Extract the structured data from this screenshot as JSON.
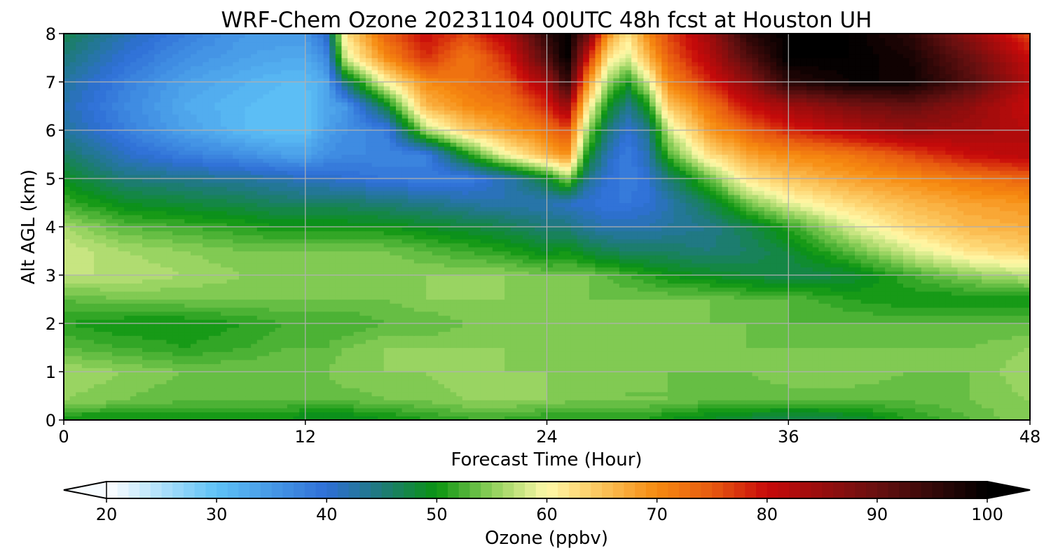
{
  "chart_data": {
    "type": "heatmap",
    "title": "WRF-Chem Ozone  20231104 00UTC 48h fcst at Houston UH",
    "xlabel": "Forecast Time (Hour)",
    "ylabel": "Alt AGL (km)",
    "xlim": [
      0,
      48
    ],
    "ylim": [
      0,
      8
    ],
    "x_ticks": [
      "0",
      "12",
      "24",
      "36",
      "48"
    ],
    "y_ticks": [
      "0",
      "1",
      "2",
      "3",
      "4",
      "5",
      "6",
      "7",
      "8"
    ],
    "grid": true,
    "colorbar": {
      "label": "Ozone  (ppbv)",
      "range": [
        20,
        100
      ],
      "extend": "both",
      "ticks": [
        "20",
        "30",
        "40",
        "50",
        "60",
        "70",
        "80",
        "90",
        "100"
      ],
      "color_stops": [
        {
          "value": 20,
          "color": "#ffffff"
        },
        {
          "value": 30,
          "color": "#5ec2f7"
        },
        {
          "value": 40,
          "color": "#2f6fd6"
        },
        {
          "value": 45,
          "color": "#1e7a7a"
        },
        {
          "value": 50,
          "color": "#0a9410"
        },
        {
          "value": 55,
          "color": "#8ed05a"
        },
        {
          "value": 60,
          "color": "#fff9a8"
        },
        {
          "value": 65,
          "color": "#fcc45a"
        },
        {
          "value": 70,
          "color": "#f68a10"
        },
        {
          "value": 75,
          "color": "#e85a10"
        },
        {
          "value": 80,
          "color": "#c80a0a"
        },
        {
          "value": 90,
          "color": "#681010"
        },
        {
          "value": 100,
          "color": "#000000"
        }
      ]
    },
    "x_hours": [
      0,
      3,
      6,
      9,
      11,
      12,
      13,
      14,
      16,
      18,
      20,
      22,
      24,
      25,
      26,
      27,
      28,
      29,
      30,
      32,
      34,
      36,
      39,
      42,
      45,
      48
    ],
    "y_km": [
      0,
      0.05,
      0.4,
      1,
      1.5,
      2,
      2.5,
      3,
      3.5,
      4,
      4.5,
      5,
      5.5,
      6,
      6.5,
      7,
      7.5,
      8
    ],
    "z_ppbv": [
      [
        51,
        52,
        51,
        51,
        51,
        52,
        51,
        51,
        51,
        52,
        52,
        52,
        51,
        51,
        51,
        51,
        51,
        51,
        51,
        50,
        49,
        48,
        49,
        52,
        53,
        55
      ],
      [
        50,
        50,
        50,
        50,
        50,
        49,
        49,
        49,
        50,
        51,
        52,
        52,
        51,
        51,
        51,
        51,
        51,
        51,
        50,
        49,
        48,
        47,
        48,
        51,
        53,
        55
      ],
      [
        55,
        54,
        53,
        53,
        53,
        53,
        53,
        53,
        54,
        54,
        55,
        55,
        55,
        54,
        54,
        54,
        54,
        54,
        54,
        53,
        53,
        53,
        53,
        53,
        54,
        55
      ],
      [
        56,
        55,
        54,
        54,
        54,
        54,
        54,
        55,
        55,
        55,
        56,
        55,
        55,
        55,
        55,
        55,
        54,
        54,
        54,
        54,
        54,
        55,
        55,
        54,
        54,
        56
      ],
      [
        53,
        52,
        51,
        52,
        53,
        53,
        53,
        54,
        55,
        55,
        55,
        55,
        54,
        54,
        54,
        54,
        54,
        54,
        54,
        54,
        54,
        54,
        54,
        54,
        54,
        55
      ],
      [
        51,
        50,
        50,
        51,
        52,
        52,
        52,
        52,
        53,
        53,
        54,
        54,
        54,
        54,
        54,
        54,
        54,
        54,
        54,
        54,
        54,
        53,
        53,
        53,
        53,
        53
      ],
      [
        53,
        54,
        54,
        54,
        54,
        54,
        54,
        54,
        54,
        55,
        55,
        55,
        55,
        54,
        54,
        54,
        54,
        54,
        54,
        54,
        53,
        53,
        51,
        50,
        50,
        50
      ],
      [
        57,
        57,
        56,
        55,
        55,
        55,
        55,
        55,
        55,
        55,
        55,
        55,
        54,
        54,
        54,
        53,
        52,
        51,
        50,
        49,
        48,
        47,
        48,
        52,
        55,
        57
      ],
      [
        58,
        56,
        55,
        54,
        54,
        54,
        54,
        54,
        54,
        53,
        52,
        51,
        49,
        50,
        48,
        47,
        46,
        46,
        46,
        45,
        46,
        48,
        53,
        58,
        62,
        64
      ],
      [
        56,
        53,
        52,
        51,
        50,
        50,
        50,
        50,
        50,
        49,
        48,
        47,
        45,
        45,
        43,
        42,
        42,
        42,
        43,
        44,
        47,
        51,
        58,
        63,
        66,
        67
      ],
      [
        52,
        49,
        48,
        47,
        46,
        46,
        46,
        46,
        45,
        44,
        43,
        42,
        42,
        41,
        40,
        39,
        39,
        40,
        42,
        47,
        54,
        59,
        63,
        66,
        68,
        69
      ],
      [
        49,
        45,
        44,
        43,
        42,
        41,
        41,
        40,
        39,
        38,
        38,
        42,
        48,
        55,
        44,
        40,
        38,
        40,
        45,
        53,
        62,
        65,
        68,
        70,
        72,
        74
      ],
      [
        46,
        41,
        38,
        36,
        34,
        34,
        36,
        37,
        37,
        38,
        50,
        60,
        66,
        70,
        50,
        42,
        38,
        42,
        52,
        62,
        68,
        70,
        72,
        76,
        80,
        82
      ],
      [
        43,
        38,
        34,
        31,
        30,
        30,
        34,
        36,
        38,
        56,
        64,
        68,
        72,
        76,
        56,
        45,
        40,
        44,
        57,
        68,
        74,
        78,
        82,
        85,
        84,
        82
      ],
      [
        42,
        37,
        33,
        31,
        30,
        30,
        33,
        35,
        48,
        66,
        70,
        72,
        78,
        85,
        62,
        50,
        44,
        50,
        64,
        72,
        80,
        84,
        88,
        90,
        86,
        80
      ],
      [
        43,
        38,
        34,
        32,
        31,
        31,
        33,
        46,
        60,
        70,
        72,
        75,
        84,
        96,
        70,
        56,
        50,
        58,
        70,
        78,
        86,
        96,
        99,
        99,
        92,
        82
      ],
      [
        45,
        40,
        36,
        34,
        33,
        33,
        36,
        58,
        70,
        78,
        72,
        78,
        92,
        100,
        80,
        62,
        58,
        66,
        74,
        82,
        92,
        100,
        100,
        98,
        90,
        80
      ],
      [
        47,
        42,
        38,
        35,
        35,
        35,
        40,
        62,
        74,
        80,
        76,
        82,
        96,
        100,
        90,
        70,
        62,
        70,
        76,
        84,
        96,
        100,
        100,
        96,
        86,
        76
      ]
    ]
  }
}
